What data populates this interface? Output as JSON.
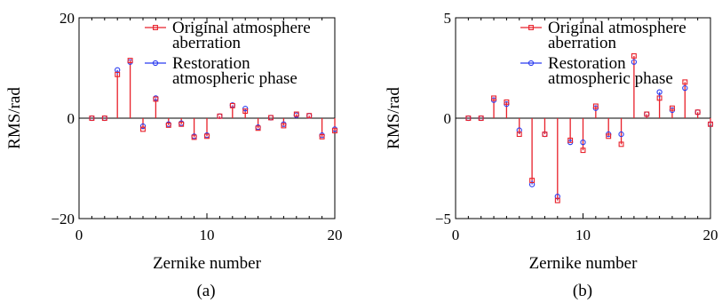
{
  "chart_data": [
    {
      "type": "scatter",
      "panel_label": "(a)",
      "xlabel": "Zernike number",
      "ylabel": "RMS/rad",
      "xlim": [
        0,
        20
      ],
      "ylim": [
        -20,
        20
      ],
      "xticks": [
        "0",
        "10",
        "20"
      ],
      "yticks": [
        "20",
        "0",
        "−20"
      ],
      "legend_position": "top-right",
      "legend": [
        {
          "name_lines": [
            "Original atmosphere",
            "aberration"
          ],
          "marker": "square",
          "color": "#e8202a"
        },
        {
          "name_lines": [
            "Restoration",
            "atmospheric phase"
          ],
          "marker": "circle",
          "color": "#2b3cf0"
        }
      ],
      "x": [
        1,
        2,
        3,
        4,
        5,
        6,
        7,
        8,
        9,
        10,
        11,
        12,
        13,
        14,
        15,
        16,
        17,
        18,
        19,
        20
      ],
      "series": [
        {
          "name": "Original atmosphere aberration",
          "marker": "square",
          "color": "#e8202a",
          "values": [
            0,
            0,
            8.7,
            11.5,
            -2.2,
            3.8,
            -1.4,
            -1.2,
            -3.8,
            -3.6,
            0.4,
            2.5,
            1.4,
            -2.0,
            0.1,
            -1.5,
            0.8,
            0.5,
            -3.7,
            -2.5
          ]
        },
        {
          "name": "Restoration atmospheric phase",
          "marker": "circle",
          "color": "#2b3cf0",
          "values": [
            0,
            0,
            9.6,
            11.2,
            -1.6,
            4.0,
            -1.2,
            -1.0,
            -3.6,
            -3.4,
            0.4,
            2.6,
            1.9,
            -1.8,
            0.1,
            -1.2,
            0.6,
            0.5,
            -3.4,
            -2.2
          ]
        }
      ]
    },
    {
      "type": "scatter",
      "panel_label": "(b)",
      "xlabel": "Zernike number",
      "ylabel": "RMS/rad",
      "xlim": [
        0,
        20
      ],
      "ylim": [
        -5,
        5
      ],
      "xticks": [
        "0",
        "10",
        "20"
      ],
      "yticks": [
        "5",
        "0",
        "−5"
      ],
      "legend_position": "top-right",
      "legend": [
        {
          "name_lines": [
            "Original atmosphere",
            "aberration"
          ],
          "marker": "square",
          "color": "#e8202a"
        },
        {
          "name_lines": [
            "Restoration",
            "atmospheric phase"
          ],
          "marker": "circle",
          "color": "#2b3cf0"
        }
      ],
      "x": [
        1,
        2,
        3,
        4,
        5,
        6,
        7,
        8,
        9,
        10,
        11,
        12,
        13,
        14,
        15,
        16,
        17,
        18,
        19,
        20
      ],
      "series": [
        {
          "name": "Original atmosphere aberration",
          "marker": "square",
          "color": "#e8202a",
          "values": [
            0,
            0,
            1.0,
            0.8,
            -0.8,
            -3.1,
            -0.8,
            -4.1,
            -1.1,
            -1.6,
            0.6,
            -0.9,
            -1.3,
            3.1,
            0.2,
            1.0,
            0.5,
            1.8,
            0.3,
            -0.3
          ]
        },
        {
          "name": "Restoration atmospheric phase",
          "marker": "circle",
          "color": "#2b3cf0",
          "values": [
            0,
            0,
            0.9,
            0.7,
            -0.6,
            -3.3,
            -0.8,
            -3.9,
            -1.2,
            -1.2,
            0.5,
            -0.8,
            -0.8,
            2.8,
            0.2,
            1.3,
            0.4,
            1.5,
            0.3,
            -0.3
          ]
        }
      ]
    }
  ]
}
